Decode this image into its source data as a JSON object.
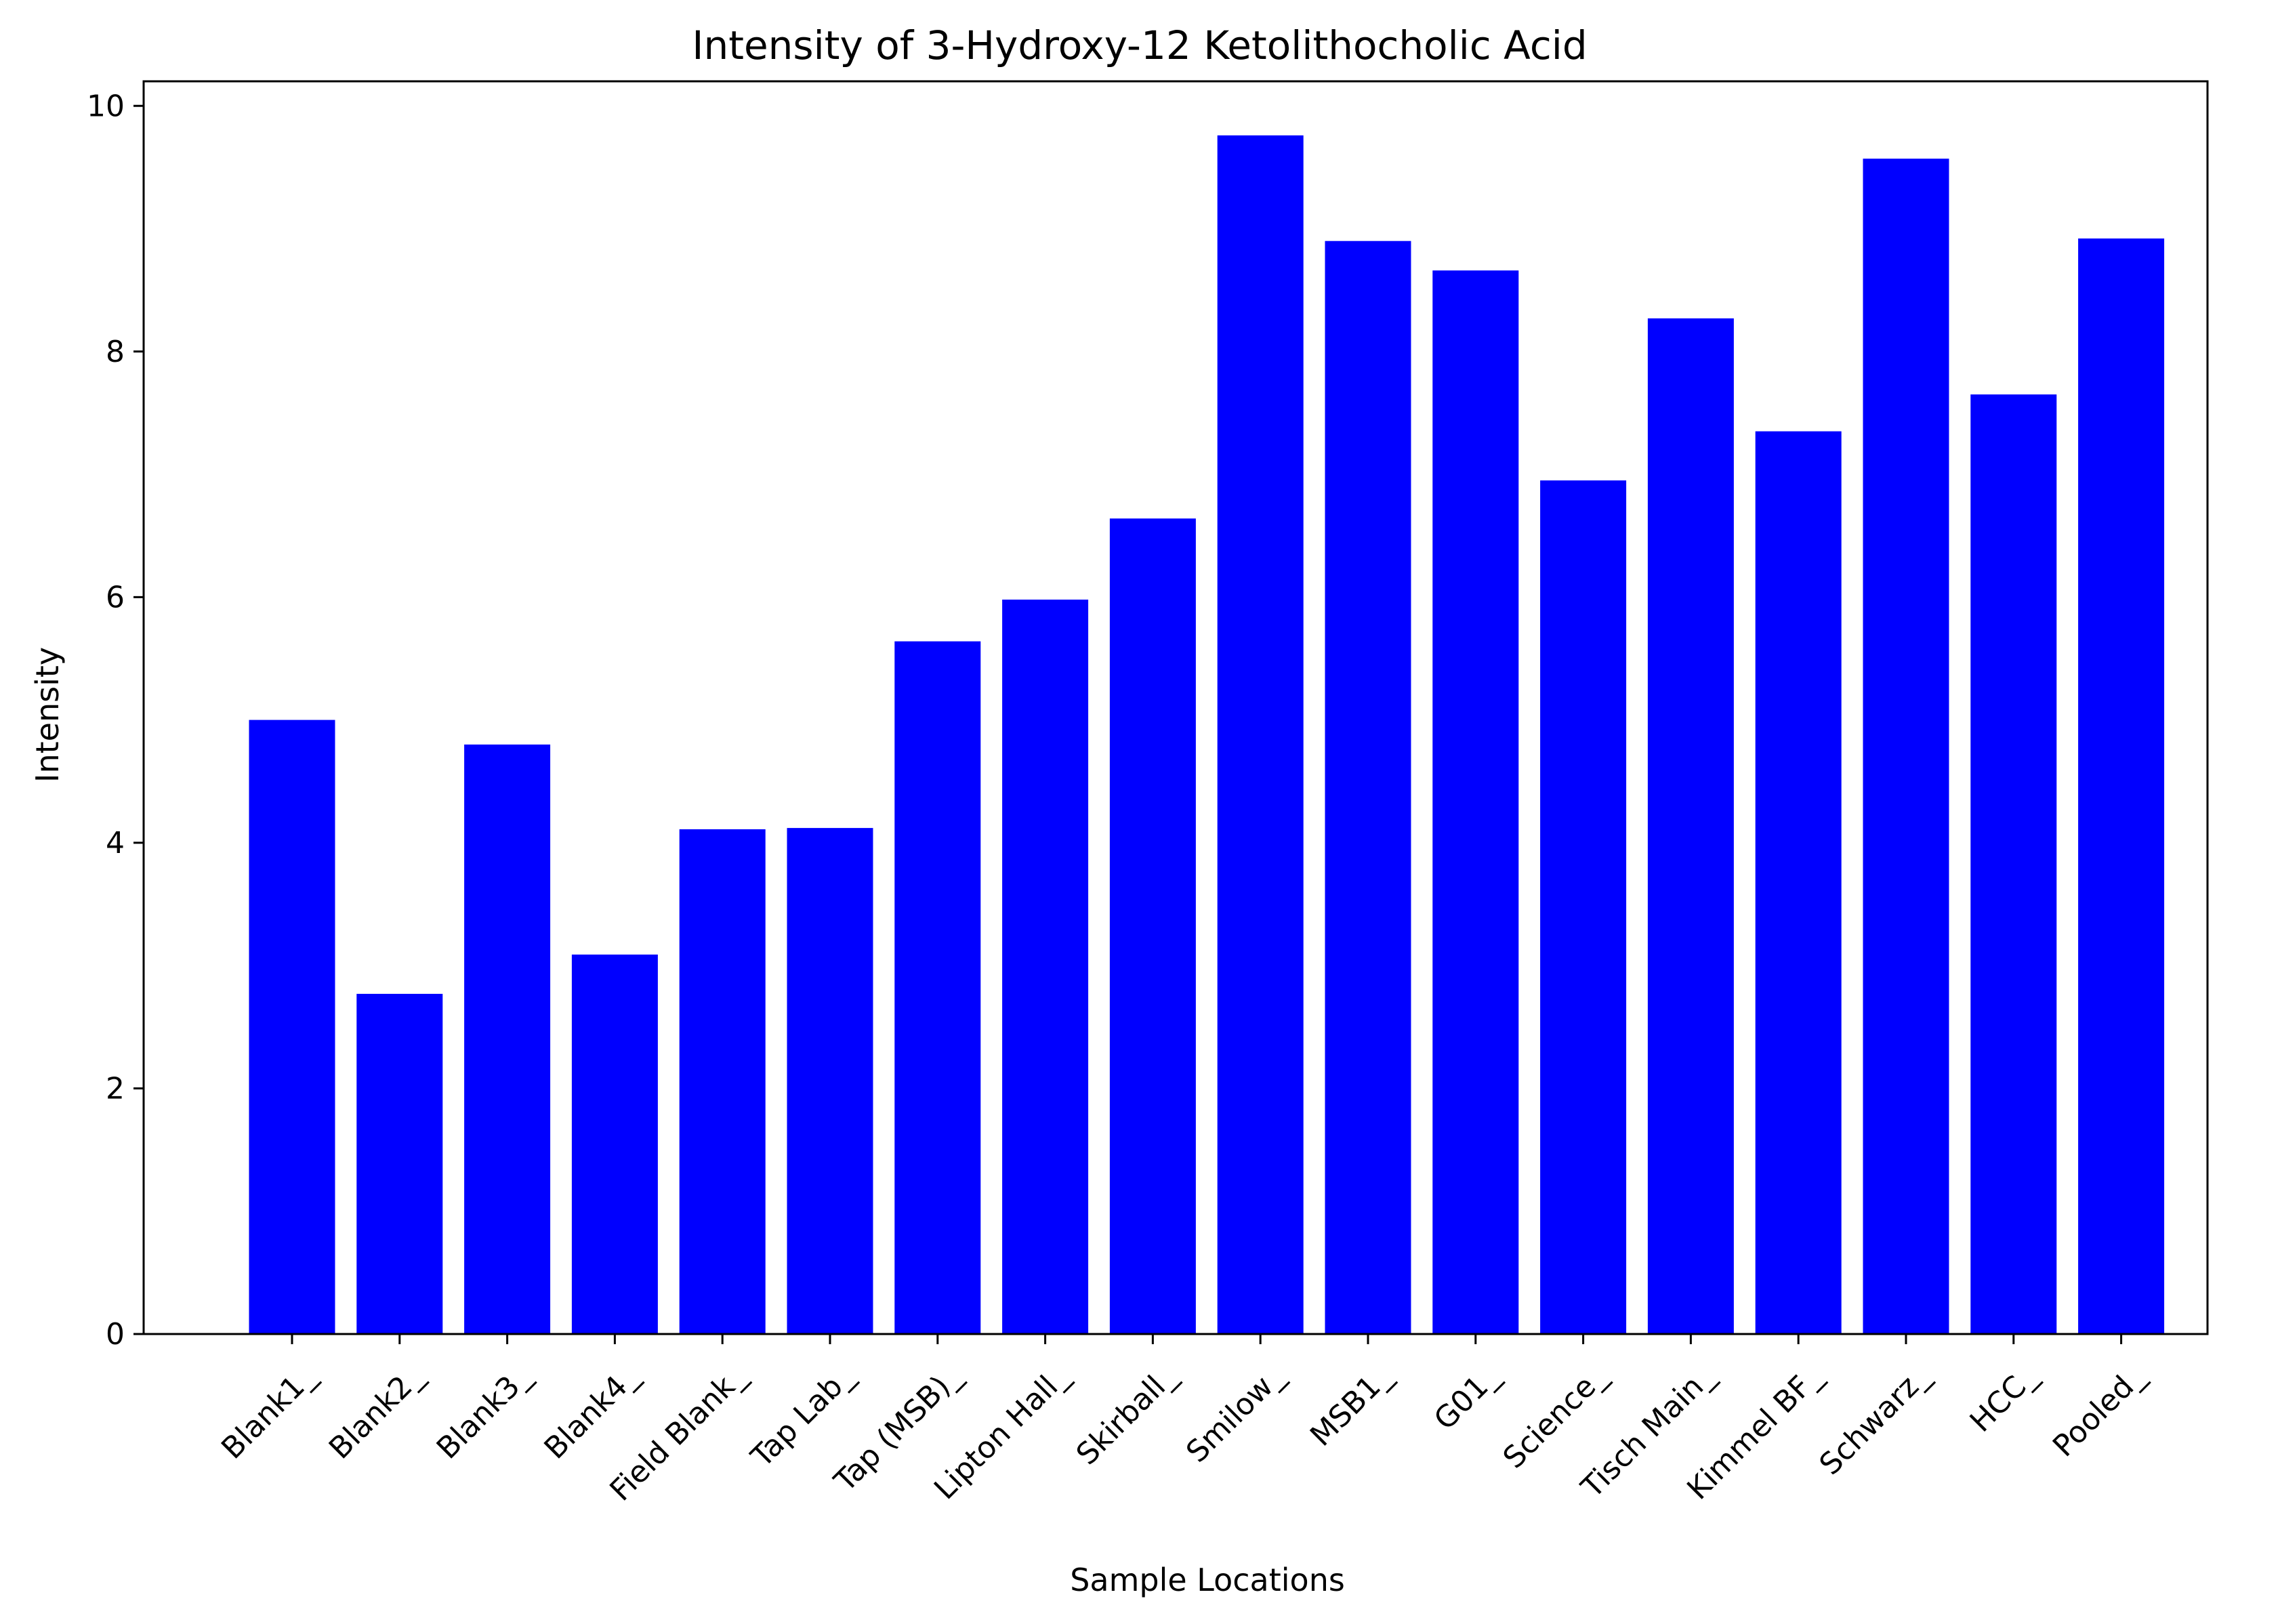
{
  "chart_data": {
    "type": "bar",
    "title": "Intensity of 3-Hydroxy-12 Ketolithocholic Acid",
    "xlabel": "Sample Locations",
    "ylabel": "Intensity",
    "ylim": [
      0,
      10.2
    ],
    "yticks": [
      0,
      2,
      4,
      6,
      8,
      10
    ],
    "grid": false,
    "bar_color": "#0000ff",
    "categories": [
      "Blank1_",
      "Blank2_",
      "Blank3_",
      "Blank4_",
      "Field Blank_",
      "Tap Lab_",
      "Tap (MSB)_",
      "Lipton Hall_",
      "Skirball_",
      "Smilow_",
      "MSB1_",
      "G01_",
      "Science_",
      "Tisch Main_",
      "Kimmel BF_",
      "Schwarz_",
      "HCC_",
      "Pooled_"
    ],
    "values": [
      5.0,
      2.77,
      4.8,
      3.09,
      4.11,
      4.12,
      5.64,
      5.98,
      6.64,
      9.76,
      8.9,
      8.66,
      6.95,
      8.27,
      7.35,
      9.57,
      7.65,
      8.92
    ]
  }
}
